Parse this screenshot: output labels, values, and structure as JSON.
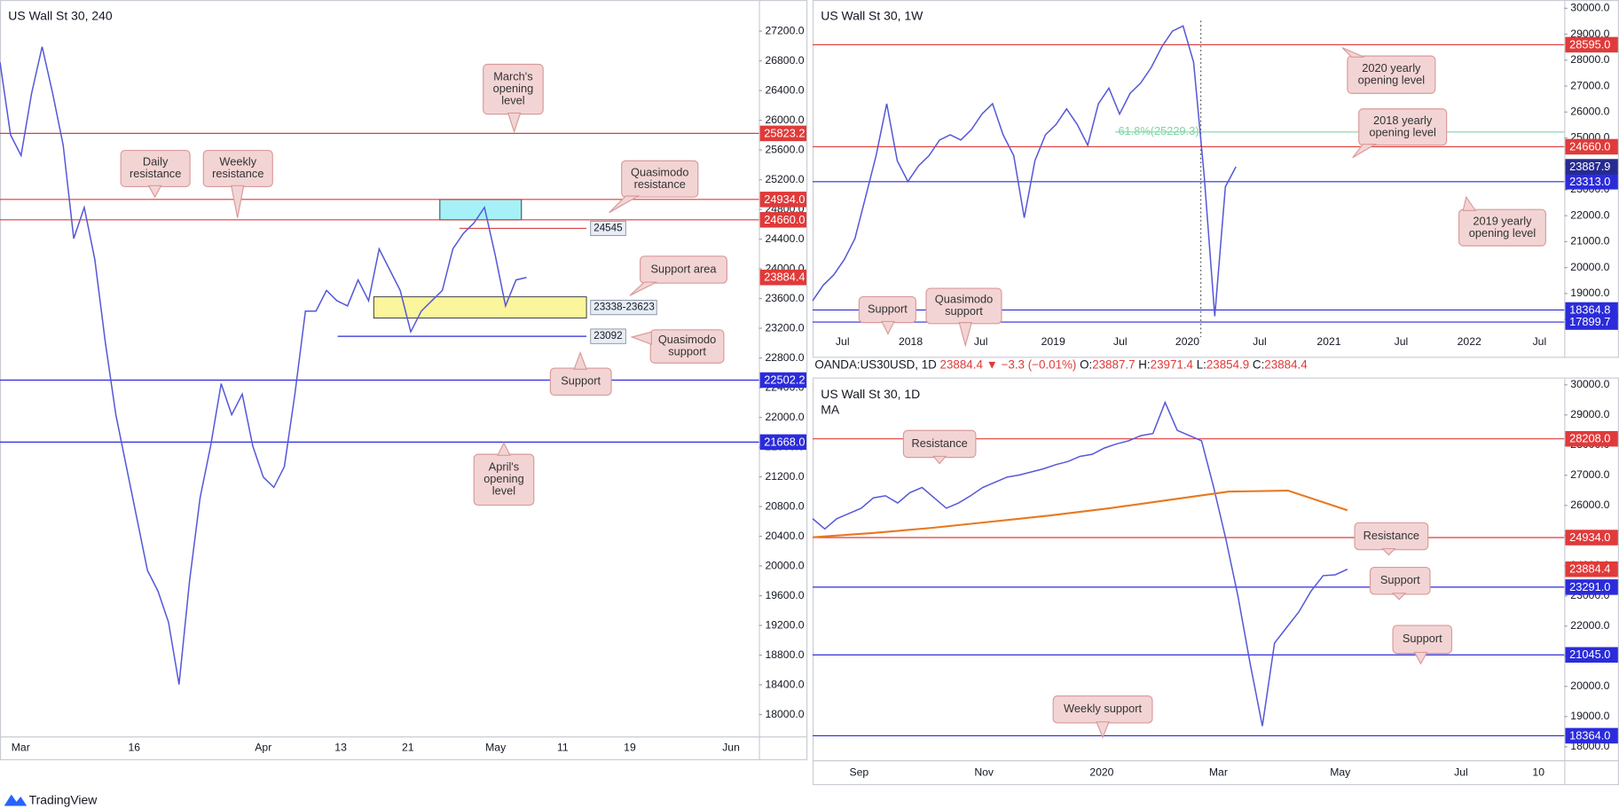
{
  "chart_data": [
    {
      "type": "line",
      "title": "US Wall St 30, 240",
      "ylim": [
        17706,
        27619
      ],
      "yticks": [
        {
          "value": 18000,
          "label": "18000.0"
        },
        {
          "value": 18400,
          "label": "18400.0"
        },
        {
          "value": 18800,
          "label": "18800.0"
        },
        {
          "value": 19200,
          "label": "19200.0"
        },
        {
          "value": 19600,
          "label": "19600.0"
        },
        {
          "value": 20000,
          "label": "20000.0"
        },
        {
          "value": 20400,
          "label": "20400.0"
        },
        {
          "value": 20800,
          "label": "20800.0"
        },
        {
          "value": 21200,
          "label": "21200.0"
        },
        {
          "value": 21600,
          "label": "21600.0"
        },
        {
          "value": 22000,
          "label": "22000.0"
        },
        {
          "value": 22400,
          "label": "22400.0"
        },
        {
          "value": 22800,
          "label": "22800.0"
        },
        {
          "value": 23200,
          "label": "23200.0"
        },
        {
          "value": 23600,
          "label": "23600.0"
        },
        {
          "value": 24000,
          "label": "24000.0"
        },
        {
          "value": 24400,
          "label": "24400.0"
        },
        {
          "value": 24800,
          "label": "24800.0"
        },
        {
          "value": 25200,
          "label": "25200.0"
        },
        {
          "value": 25600,
          "label": "25600.0"
        },
        {
          "value": 26000,
          "label": "26000.0"
        },
        {
          "value": 26400,
          "label": "26400.0"
        },
        {
          "value": 26800,
          "label": "26800.0"
        },
        {
          "value": 27200,
          "label": "27200.0"
        }
      ],
      "x_labels": [
        "Mar",
        "16",
        "Apr",
        "13",
        "21",
        "May",
        "11",
        "19",
        "Jun"
      ],
      "color": "#5558d8",
      "values": [
        26781,
        25804,
        25525,
        26362,
        26991,
        26362,
        25664,
        24408,
        24827,
        24129,
        23012,
        22035,
        21337,
        20639,
        19941,
        19662,
        19243,
        18405,
        19801,
        20918,
        21616,
        22454,
        22035,
        22314,
        21616,
        21197,
        21058,
        21337,
        22314,
        23431,
        23431,
        23710,
        23570,
        23501,
        23850,
        23570,
        24268,
        23989,
        23710,
        23152,
        23431,
        23570,
        23710,
        24268,
        24478,
        24617,
        24827,
        24199,
        23501,
        23850,
        23884
      ],
      "zones": [
        {
          "low": 24660,
          "high": 24934,
          "color": "#a6f1f7"
        },
        {
          "low": 23338,
          "high": 23623,
          "color": "#fbf59b",
          "label": "23338-23623"
        }
      ],
      "levels": [
        {
          "value": 25823.2,
          "label": "25823.2",
          "color": "#e03a3a"
        },
        {
          "value": 24934.0,
          "label": "24934.0",
          "color": "#e03a3a"
        },
        {
          "value": 24660.0,
          "label": "24660.0",
          "color": "#e03a3a"
        },
        {
          "value": 22502.2,
          "label": "22502.2",
          "color": "#2b2bdb"
        },
        {
          "value": 21668.0,
          "label": "21668.0",
          "color": "#2b2bdb"
        }
      ],
      "marked_levels": [
        {
          "value": 24545,
          "label": "24545",
          "color": "#d64545"
        },
        {
          "value": 23092,
          "label": "23092",
          "color": "#2b2bdb"
        }
      ],
      "last_price": {
        "value": 23884.4,
        "label": "23884.4",
        "color": "#e03a3a"
      },
      "annotations": [
        {
          "lines": [
            "March's",
            "opening",
            "level"
          ]
        },
        {
          "lines": [
            "Daily",
            "resistance"
          ]
        },
        {
          "lines": [
            "Weekly",
            "resistance"
          ]
        },
        {
          "lines": [
            "Quasimodo",
            "resistance"
          ]
        },
        {
          "lines": [
            "Support area"
          ]
        },
        {
          "lines": [
            "Quasimodo",
            "support"
          ]
        },
        {
          "lines": [
            "Support"
          ]
        },
        {
          "lines": [
            "April's",
            "opening",
            "level"
          ]
        }
      ]
    },
    {
      "type": "line",
      "title": "US Wall St 30, 1W",
      "ylim": [
        16720,
        30320
      ],
      "yticks": [
        {
          "value": 18000,
          "label": "18000.0"
        },
        {
          "value": 19000,
          "label": "19000.0"
        },
        {
          "value": 20000,
          "label": "20000.0"
        },
        {
          "value": 21000,
          "label": "21000.0"
        },
        {
          "value": 22000,
          "label": "22000.0"
        },
        {
          "value": 23000,
          "label": "23000.0"
        },
        {
          "value": 24000,
          "label": "24000.0"
        },
        {
          "value": 25000,
          "label": "25000.0"
        },
        {
          "value": 26000,
          "label": "26000.0"
        },
        {
          "value": 27000,
          "label": "27000.0"
        },
        {
          "value": 28000,
          "label": "28000.0"
        },
        {
          "value": 29000,
          "label": "29000.0"
        },
        {
          "value": 30000,
          "label": "30000.0"
        }
      ],
      "x_labels": [
        "Jul",
        "2018",
        "Jul",
        "2019",
        "Jul",
        "2020",
        "Jul",
        "2021",
        "Jul",
        "2022",
        "Jul"
      ],
      "color": "#5558d8",
      "values": [
        18720,
        19320,
        19720,
        20320,
        21120,
        22720,
        24320,
        26320,
        24120,
        23320,
        23920,
        24320,
        24920,
        25120,
        24920,
        25320,
        25920,
        26320,
        25120,
        24320,
        21920,
        24120,
        25120,
        25520,
        26120,
        25520,
        24720,
        26320,
        26920,
        25920,
        26720,
        27120,
        27720,
        28520,
        29120,
        29320,
        27920,
        23520,
        18120,
        23120,
        23888
      ],
      "fib": {
        "value": 25229.3,
        "label": "61.8%(25229.3)",
        "color": "#7fd6a4"
      },
      "levels": [
        {
          "value": 28595.0,
          "label": "28595.0",
          "color": "#e03a3a"
        },
        {
          "value": 24660.0,
          "label": "24660.0",
          "color": "#e03a3a"
        },
        {
          "value": 23313.0,
          "label": "23313.0",
          "color": "#2b2bdb"
        },
        {
          "value": 18364.8,
          "label": "18364.8",
          "color": "#2b2bdb"
        },
        {
          "value": 17899.7,
          "label": "17899.7",
          "color": "#2b2bdb"
        }
      ],
      "last_price": {
        "value": 23887.9,
        "label": "23887.9",
        "color": "#262b8f"
      },
      "annotations": [
        {
          "lines": [
            "2020 yearly",
            "opening level"
          ]
        },
        {
          "lines": [
            "2018 yearly",
            "opening level"
          ]
        },
        {
          "lines": [
            "2019 yearly",
            "opening level"
          ]
        },
        {
          "lines": [
            "Support"
          ]
        },
        {
          "lines": [
            "Quasimodo",
            "support"
          ]
        }
      ]
    },
    {
      "type": "line",
      "title": "US Wall St 30, 1D",
      "subtitle": "MA",
      "header": [
        {
          "text": "OANDA:US30USD, 1D ",
          "color": "#131722"
        },
        {
          "text": "23884.4 ▼ ",
          "color": "#e03a3a"
        },
        {
          "text": "−3.3 (−0.01%) ",
          "color": "#e03a3a"
        },
        {
          "text": "O:",
          "color": "#131722"
        },
        {
          "text": "23887.7 ",
          "color": "#e03a3a"
        },
        {
          "text": "H:",
          "color": "#131722"
        },
        {
          "text": "23971.4 ",
          "color": "#e03a3a"
        },
        {
          "text": "L:",
          "color": "#131722"
        },
        {
          "text": "23854.9 ",
          "color": "#e03a3a"
        },
        {
          "text": "C:",
          "color": "#131722"
        },
        {
          "text": "23884.4",
          "color": "#e03a3a"
        }
      ],
      "ylim": [
        17551,
        30206
      ],
      "yticks": [
        {
          "value": 18000,
          "label": "18000.0"
        },
        {
          "value": 19000,
          "label": "19000.0"
        },
        {
          "value": 20000,
          "label": "20000.0"
        },
        {
          "value": 21000,
          "label": "21000.0"
        },
        {
          "value": 22000,
          "label": "22000.0"
        },
        {
          "value": 23000,
          "label": "23000.0"
        },
        {
          "value": 24000,
          "label": "24000.0"
        },
        {
          "value": 25000,
          "label": "25000.0"
        },
        {
          "value": 26000,
          "label": "26000.0"
        },
        {
          "value": 27000,
          "label": "27000.0"
        },
        {
          "value": 28000,
          "label": "28000.0"
        },
        {
          "value": 29000,
          "label": "29000.0"
        },
        {
          "value": 30000,
          "label": "30000.0"
        }
      ],
      "x_labels": [
        "Sep",
        "Nov",
        "2020",
        "Mar",
        "May",
        "Jul",
        "10"
      ],
      "color": "#5558d8",
      "values": [
        25564,
        25220,
        25564,
        25736,
        25908,
        26252,
        26320,
        26080,
        26423,
        26595,
        26252,
        25908,
        26080,
        26320,
        26595,
        26767,
        26939,
        27008,
        27111,
        27214,
        27352,
        27455,
        27628,
        27696,
        27902,
        28040,
        28143,
        28315,
        28384,
        29415,
        28487,
        28315,
        28143,
        26595,
        24876,
        22985,
        20749,
        18686,
        21437,
        21953,
        22469,
        23156,
        23672,
        23700,
        23884
      ],
      "ma": {
        "color": "#e8781e",
        "values": [
          24945,
          25082,
          25254,
          25461,
          25667,
          25908,
          26183,
          26458,
          26492,
          25839
        ]
      },
      "levels": [
        {
          "value": 28208.0,
          "label": "28208.0",
          "color": "#e03a3a"
        },
        {
          "value": 24934.0,
          "label": "24934.0",
          "color": "#e03a3a"
        },
        {
          "value": 23291.0,
          "label": "23291.0",
          "color": "#2b2bdb"
        },
        {
          "value": 21045.0,
          "label": "21045.0",
          "color": "#2b2bdb"
        },
        {
          "value": 18364.0,
          "label": "18364.0",
          "color": "#2b2bdb"
        }
      ],
      "last_price": {
        "value": 23884.4,
        "label": "23884.4",
        "color": "#e03a3a"
      },
      "annotations": [
        {
          "lines": [
            "Resistance"
          ]
        },
        {
          "lines": [
            "Resistance"
          ]
        },
        {
          "lines": [
            "Support"
          ]
        },
        {
          "lines": [
            "Support"
          ]
        },
        {
          "lines": [
            "Weekly support"
          ]
        }
      ]
    }
  ],
  "footer": {
    "brand": "TradingView"
  }
}
